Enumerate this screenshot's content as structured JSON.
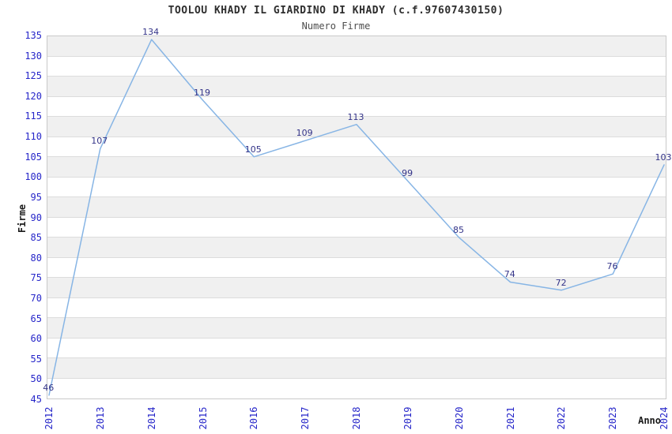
{
  "chart": {
    "title": "TOOLOU KHADY IL GIARDINO DI KHADY (c.f.97607430150)",
    "subtitle": "Numero Firme",
    "ylabel": "Firme",
    "xlabel": "Anno"
  },
  "chart_data": {
    "type": "line",
    "title": "TOOLOU KHADY IL GIARDINO DI KHADY (c.f.97607430150)",
    "subtitle": "Numero Firme",
    "xlabel": "Anno",
    "ylabel": "Firme",
    "categories": [
      "2012",
      "2013",
      "2014",
      "2015",
      "2016",
      "2017",
      "2018",
      "2019",
      "2020",
      "2021",
      "2022",
      "2023",
      "2024"
    ],
    "values": [
      46,
      107,
      134,
      119,
      105,
      109,
      113,
      99,
      85,
      74,
      72,
      76,
      103
    ],
    "data_labels_shown": true,
    "ylim": [
      45,
      135
    ],
    "ytick_step": 5,
    "grid": "horizontal-bands-alternating",
    "legend": "none",
    "colors": {
      "line": "#87b5e5",
      "tick_label": "#2626c9",
      "data_label": "#333388",
      "band_gray": "#f0f0f0",
      "band_white": "#ffffff",
      "grid_line": "#dcdcdc",
      "plot_border": "#c9c9c9",
      "title": "#2e2e2e",
      "subtitle": "#4d4d4d",
      "axis_title": "#1a1a1a"
    }
  }
}
